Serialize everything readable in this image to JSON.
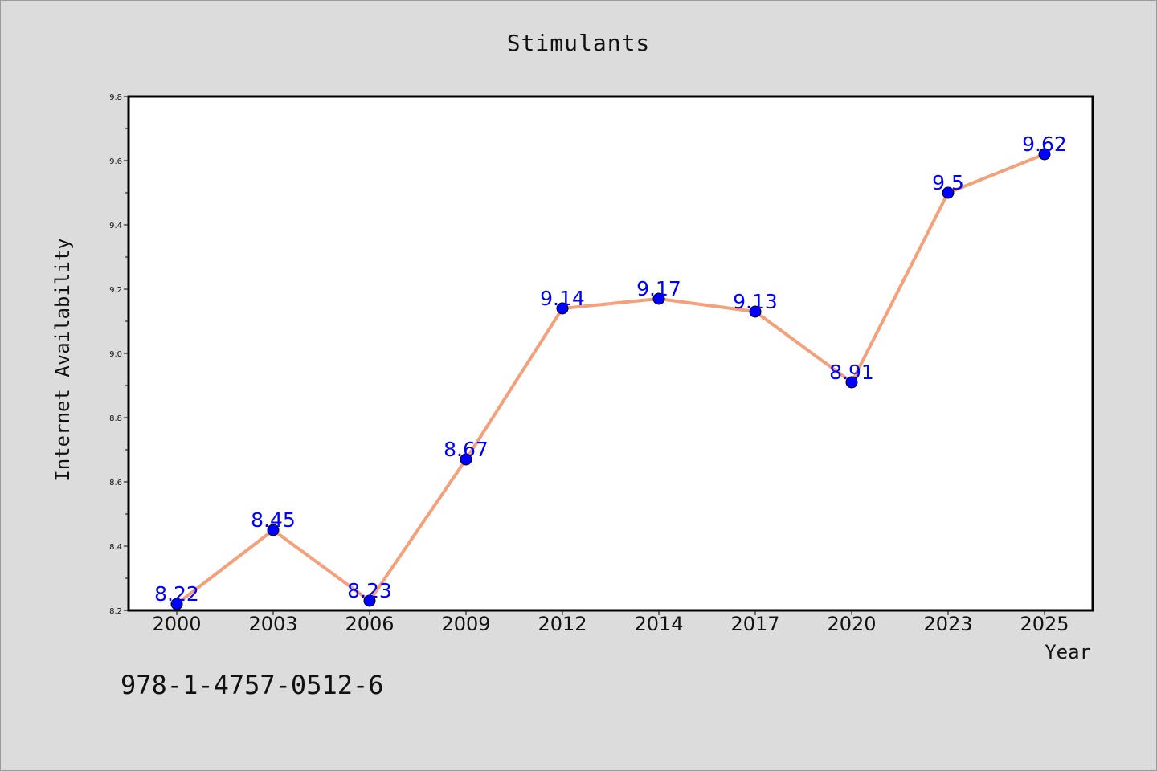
{
  "chart_data": {
    "type": "line",
    "title": "Stimulants",
    "xlabel": "Year",
    "ylabel": "Internet Availability",
    "categories": [
      "2000",
      "2003",
      "2006",
      "2009",
      "2012",
      "2014",
      "2017",
      "2020",
      "2023",
      "2025"
    ],
    "series": [
      {
        "values": [
          8.22,
          8.45,
          8.23,
          8.67,
          9.14,
          9.17,
          9.13,
          8.91,
          9.5,
          9.62
        ],
        "line_color": "#f4a07a",
        "marker_color": "#0000ff"
      }
    ],
    "data_labels": [
      "8.22",
      "8.45",
      "8.23",
      "8.67",
      "9.14",
      "9.17",
      "9.13",
      "8.91",
      "9.5",
      "9.62"
    ],
    "ylim": [
      8.2,
      9.8
    ],
    "yticks": [
      "8.2",
      "8.4",
      "8.6",
      "8.8",
      "9.0",
      "9.2",
      "9.4",
      "9.6",
      "9.8"
    ],
    "grid": false,
    "legend": "none"
  },
  "footer": {
    "isbn": "978-1-4757-0512-6"
  }
}
